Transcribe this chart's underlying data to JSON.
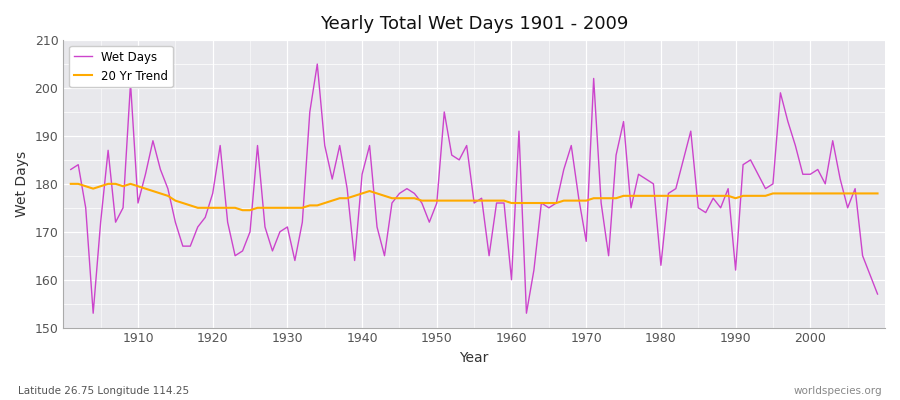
{
  "title": "Yearly Total Wet Days 1901 - 2009",
  "xlabel": "Year",
  "ylabel": "Wet Days",
  "subtitle_lat": "Latitude 26.75 Longitude 114.25",
  "watermark": "worldspecies.org",
  "ylim": [
    150,
    210
  ],
  "yticks": [
    150,
    160,
    170,
    180,
    190,
    200,
    210
  ],
  "line_color": "#cc44cc",
  "trend_color": "#ffaa00",
  "bg_color": "#e8e8ec",
  "fig_bg_color": "#ffffff",
  "years": [
    1901,
    1902,
    1903,
    1904,
    1905,
    1906,
    1907,
    1908,
    1909,
    1910,
    1911,
    1912,
    1913,
    1914,
    1915,
    1916,
    1917,
    1918,
    1919,
    1920,
    1921,
    1922,
    1923,
    1924,
    1925,
    1926,
    1927,
    1928,
    1929,
    1930,
    1931,
    1932,
    1933,
    1934,
    1935,
    1936,
    1937,
    1938,
    1939,
    1940,
    1941,
    1942,
    1943,
    1944,
    1945,
    1946,
    1947,
    1948,
    1949,
    1950,
    1951,
    1952,
    1953,
    1954,
    1955,
    1956,
    1957,
    1958,
    1959,
    1960,
    1961,
    1962,
    1963,
    1964,
    1965,
    1966,
    1967,
    1968,
    1969,
    1970,
    1971,
    1972,
    1973,
    1974,
    1975,
    1976,
    1977,
    1978,
    1979,
    1980,
    1981,
    1982,
    1983,
    1984,
    1985,
    1986,
    1987,
    1988,
    1989,
    1990,
    1991,
    1992,
    1993,
    1994,
    1995,
    1996,
    1997,
    1998,
    1999,
    2000,
    2001,
    2002,
    2003,
    2004,
    2005,
    2006,
    2007,
    2008,
    2009
  ],
  "wet_days": [
    183,
    184,
    175,
    153,
    172,
    187,
    172,
    175,
    201,
    176,
    182,
    189,
    183,
    179,
    172,
    167,
    167,
    171,
    173,
    178,
    188,
    172,
    165,
    166,
    170,
    188,
    171,
    166,
    170,
    171,
    164,
    172,
    195,
    205,
    188,
    181,
    188,
    179,
    164,
    182,
    188,
    171,
    165,
    176,
    178,
    179,
    178,
    176,
    172,
    176,
    195,
    186,
    185,
    188,
    176,
    177,
    165,
    176,
    176,
    160,
    191,
    153,
    162,
    176,
    175,
    176,
    183,
    188,
    177,
    168,
    202,
    176,
    165,
    186,
    193,
    175,
    182,
    181,
    180,
    163,
    178,
    179,
    185,
    191,
    175,
    174,
    177,
    175,
    179,
    162,
    184,
    185,
    182,
    179,
    180,
    199,
    193,
    188,
    182,
    182,
    183,
    180,
    189,
    181,
    175,
    179,
    165,
    161,
    157
  ],
  "trend": [
    180,
    180,
    179.5,
    179,
    179.5,
    180,
    180,
    179.5,
    180,
    179.5,
    179,
    178.5,
    178,
    177.5,
    176.5,
    176,
    175.5,
    175,
    175,
    175,
    175,
    175,
    175,
    174.5,
    174.5,
    175,
    175,
    175,
    175,
    175,
    175,
    175,
    175.5,
    175.5,
    176,
    176.5,
    177,
    177,
    177.5,
    178,
    178.5,
    178,
    177.5,
    177,
    177,
    177,
    177,
    176.5,
    176.5,
    176.5,
    176.5,
    176.5,
    176.5,
    176.5,
    176.5,
    176.5,
    176.5,
    176.5,
    176.5,
    176,
    176,
    176,
    176,
    176,
    176,
    176,
    176.5,
    176.5,
    176.5,
    176.5,
    177,
    177,
    177,
    177,
    177.5,
    177.5,
    177.5,
    177.5,
    177.5,
    177.5,
    177.5,
    177.5,
    177.5,
    177.5,
    177.5,
    177.5,
    177.5,
    177.5,
    177.5,
    177,
    177.5,
    177.5,
    177.5,
    177.5,
    178,
    178,
    178,
    178,
    178,
    178,
    178,
    178,
    178,
    178,
    178,
    178,
    178,
    178,
    178
  ]
}
